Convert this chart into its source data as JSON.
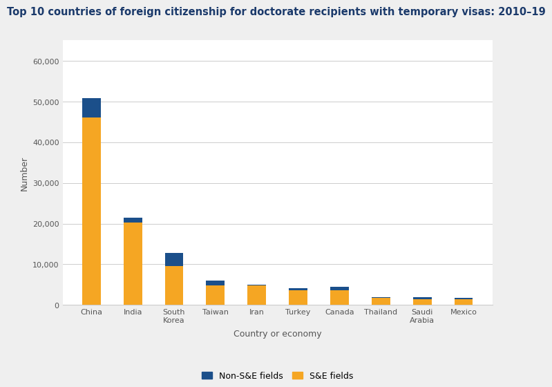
{
  "title": "Top 10 countries of foreign citizenship for doctorate recipients with temporary visas: 2010–19",
  "categories": [
    "China",
    "India",
    "South\nKorea",
    "Taiwan",
    "Iran",
    "Turkey",
    "Canada",
    "Thailand",
    "Saudi\nArabia",
    "Mexico"
  ],
  "se_fields": [
    46000,
    20200,
    9500,
    4800,
    4800,
    3600,
    3700,
    1800,
    1400,
    1500
  ],
  "nonse_fields": [
    4800,
    1200,
    3300,
    1200,
    200,
    500,
    800,
    200,
    500,
    200
  ],
  "se_color": "#F5A623",
  "nonse_color": "#1B4F8A",
  "ylabel": "Number",
  "xlabel": "Country or economy",
  "ylim": [
    0,
    65000
  ],
  "yticks": [
    0,
    10000,
    20000,
    30000,
    40000,
    50000,
    60000
  ],
  "ytick_labels": [
    "0",
    "10,000",
    "20,000",
    "30,000",
    "40,000",
    "50,000",
    "60,000"
  ],
  "background_color": "#EFEFEF",
  "plot_background": "#FFFFFF",
  "title_fontsize": 10.5,
  "title_color": "#1B3A6B",
  "axis_label_fontsize": 9,
  "tick_fontsize": 8,
  "legend_fontsize": 9
}
